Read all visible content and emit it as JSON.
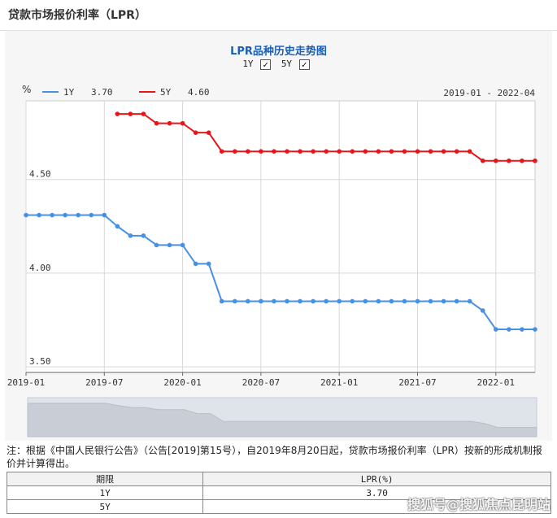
{
  "page": {
    "title": "贷款市场报价利率（LPR）"
  },
  "chart_data": {
    "type": "line",
    "title": "LPR品种历史走势图",
    "toggles": [
      {
        "label": "1Y",
        "checked": true
      },
      {
        "label": "5Y",
        "checked": true
      }
    ],
    "check_glyph": "✓",
    "unit_label": "%",
    "date_range": "2019-01 - 2022-04",
    "y_ticks": [
      "4.50",
      "4.00",
      "3.50"
    ],
    "ylim": [
      3.47,
      4.92
    ],
    "x_ticks": [
      "2019-01",
      "2019-07",
      "2020-01",
      "2020-07",
      "2021-01",
      "2021-07",
      "2022-01"
    ],
    "x_start": "2019-01",
    "series": [
      {
        "name": "1Y",
        "latest": "3.70",
        "color": "#4a90e2",
        "start": "2019-01",
        "values": [
          4.31,
          4.31,
          4.31,
          4.31,
          4.31,
          4.31,
          4.31,
          4.25,
          4.2,
          4.2,
          4.15,
          4.15,
          4.15,
          4.05,
          4.05,
          3.85,
          3.85,
          3.85,
          3.85,
          3.85,
          3.85,
          3.85,
          3.85,
          3.85,
          3.85,
          3.85,
          3.85,
          3.85,
          3.85,
          3.85,
          3.85,
          3.85,
          3.85,
          3.85,
          3.85,
          3.8,
          3.7,
          3.7,
          3.7,
          3.7
        ]
      },
      {
        "name": "5Y",
        "latest": "4.60",
        "color": "#e8151b",
        "start": "2019-08",
        "values": [
          4.85,
          4.85,
          4.85,
          4.8,
          4.8,
          4.8,
          4.75,
          4.75,
          4.65,
          4.65,
          4.65,
          4.65,
          4.65,
          4.65,
          4.65,
          4.65,
          4.65,
          4.65,
          4.65,
          4.65,
          4.65,
          4.65,
          4.65,
          4.65,
          4.65,
          4.65,
          4.65,
          4.65,
          4.6,
          4.6,
          4.6,
          4.6,
          4.6
        ]
      }
    ],
    "grid": true
  },
  "note": "注：根据《中国人民银行公告》（公告[2019]第15号），自2019年8月20日起，贷款市场报价利率（LPR）按新的形成机制报价并计算得出。",
  "table": {
    "headers": [
      "期限",
      "LPR(%)"
    ],
    "rows": [
      [
        "1Y",
        "3.70"
      ],
      [
        "5Y",
        ""
      ]
    ]
  },
  "watermark": "搜狐号@搜狐焦点昆明站"
}
